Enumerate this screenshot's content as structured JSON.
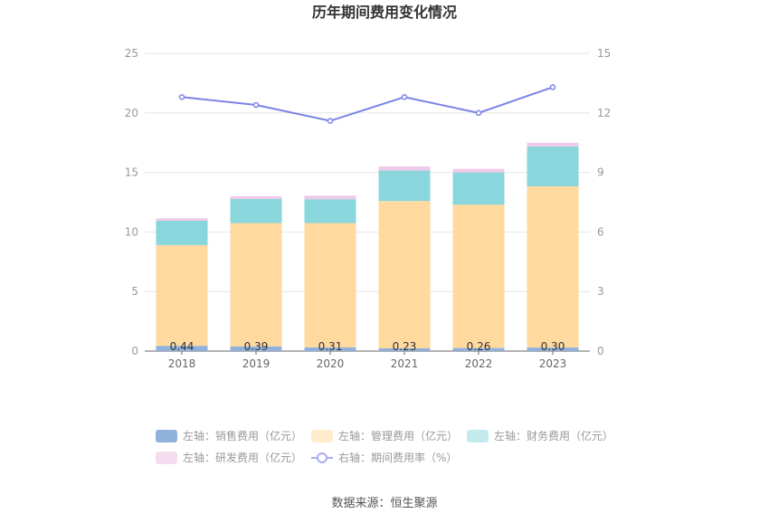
{
  "chart_data": {
    "type": "bar",
    "title": "历年期间费用变化情况",
    "categories": [
      "2018",
      "2019",
      "2020",
      "2021",
      "2022",
      "2023"
    ],
    "left_axis": {
      "min": 0,
      "max": 25,
      "ticks": [
        "0",
        "5",
        "10",
        "15",
        "20",
        "25"
      ]
    },
    "right_axis": {
      "min": 0,
      "max": 15,
      "ticks": [
        "0",
        "3",
        "6",
        "9",
        "12",
        "15"
      ]
    },
    "series": [
      {
        "name": "左轴：销售费用（亿元）",
        "axis": "left",
        "kind": "stacked-bar",
        "color": "#8fb1dc",
        "values": [
          0.44,
          0.39,
          0.31,
          0.23,
          0.26,
          0.3
        ],
        "labels": [
          "0.44",
          "0.39",
          "0.31",
          "0.23",
          "0.26",
          "0.30"
        ]
      },
      {
        "name": "左轴：管理费用（亿元）",
        "axis": "left",
        "kind": "stacked-bar",
        "color": "#ffd99e",
        "values": [
          8.46,
          10.36,
          10.44,
          12.37,
          12.04,
          13.53
        ]
      },
      {
        "name": "左轴：财务费用（亿元）",
        "axis": "left",
        "kind": "stacked-bar",
        "color": "#89d6dc",
        "values": [
          2.05,
          2.02,
          2.0,
          2.56,
          2.7,
          3.35
        ]
      },
      {
        "name": "左轴：研发费用（亿元）",
        "axis": "left",
        "kind": "stacked-bar",
        "color": "#efc9e8",
        "values": [
          0.2,
          0.23,
          0.3,
          0.34,
          0.3,
          0.32
        ]
      },
      {
        "name": "右轴：期间费用率（%）",
        "axis": "right",
        "kind": "line",
        "color": "#7b83e6",
        "values": [
          12.8,
          12.4,
          11.6,
          12.8,
          12.0,
          13.3
        ]
      }
    ],
    "legend_placement": "bottom",
    "grid": true
  },
  "legend_items": [
    {
      "label": "左轴：销售费用（亿元）",
      "color": "#8fb1dc",
      "shape": "rect",
      "light": "#8fb1dc"
    },
    {
      "label": "左轴：管理费用（亿元）",
      "color": "#ffd99e",
      "shape": "rect",
      "light": "#ffeccc"
    },
    {
      "label": "左轴：财务费用（亿元）",
      "color": "#89d6dc",
      "shape": "rect",
      "light": "#c3ebee"
    },
    {
      "label": "左轴：研发费用（亿元）",
      "color": "#efc9e8",
      "shape": "rect",
      "light": "#f5dcef"
    },
    {
      "label": "右轴：期间费用率（%）",
      "color": "#7b83e6",
      "shape": "line",
      "light": "#a9aef0"
    }
  ],
  "source": "数据来源：恒生聚源"
}
